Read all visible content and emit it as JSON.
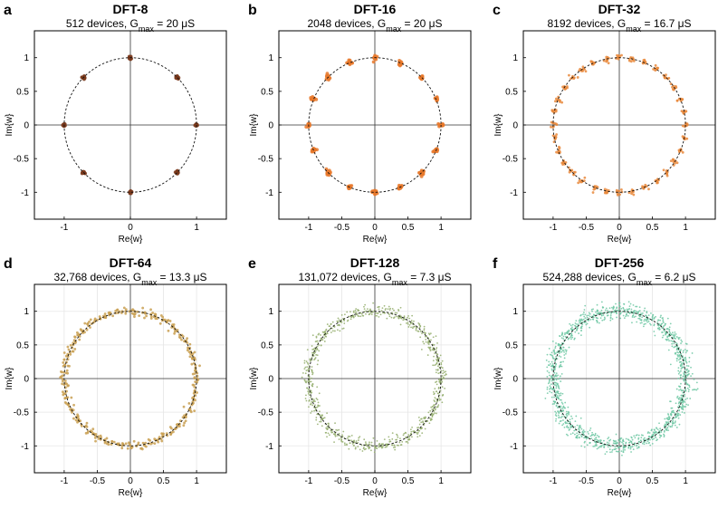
{
  "chart_data": [
    {
      "type": "scatter",
      "panel_letter": "a",
      "title": "DFT-8",
      "subtitle_prefix": "512 devices, G",
      "subtitle_sub": "max",
      "subtitle_suffix": " = 20 μS",
      "xlabel": "Re{w}",
      "ylabel": "Im{w}",
      "xlim": [
        -1.45,
        1.45
      ],
      "ylim": [
        -1.4,
        1.4
      ],
      "xticks": [
        "-1",
        "0",
        "1"
      ],
      "xtick_values": [
        -1,
        0,
        1
      ],
      "yticks": [
        "1",
        "0.5",
        "0",
        "-0.5",
        "-1"
      ],
      "ytick_values": [
        1,
        0.5,
        0,
        -0.5,
        -1
      ],
      "grid": false,
      "unit_circle": true,
      "n_roots": 8,
      "point_spread": 0.012,
      "points_per_cluster": 14,
      "point_color": "#7a3a1c"
    },
    {
      "type": "scatter",
      "panel_letter": "b",
      "title": "DFT-16",
      "subtitle_prefix": "2048 devices, G",
      "subtitle_sub": "max",
      "subtitle_suffix": " = 20 μS",
      "xlabel": "Re{w}",
      "ylabel": "Im{w}",
      "xlim": [
        -1.45,
        1.45
      ],
      "ylim": [
        -1.4,
        1.4
      ],
      "xticks": [
        "-1",
        "-0.5",
        "0",
        "0.5",
        "1"
      ],
      "xtick_values": [
        -1,
        -0.5,
        0,
        0.5,
        1
      ],
      "yticks": [
        "1",
        "0.5",
        "0",
        "-0.5",
        "-1"
      ],
      "ytick_values": [
        1,
        0.5,
        0,
        -0.5,
        -1
      ],
      "grid": false,
      "unit_circle": true,
      "n_roots": 16,
      "point_spread": 0.018,
      "points_per_cluster": 14,
      "point_color": "#e8782a"
    },
    {
      "type": "scatter",
      "panel_letter": "c",
      "title": "DFT-32",
      "subtitle_prefix": "8192 devices, G",
      "subtitle_sub": "max",
      "subtitle_suffix": " = 16.7 μS",
      "xlabel": "Re{w}",
      "ylabel": "Im{w}",
      "xlim": [
        -1.45,
        1.45
      ],
      "ylim": [
        -1.4,
        1.4
      ],
      "xticks": [
        "-1",
        "-0.5",
        "0",
        "0.5",
        "1"
      ],
      "xtick_values": [
        -1,
        -0.5,
        0,
        0.5,
        1
      ],
      "yticks": [
        "1",
        "0.5",
        "0",
        "-0.5",
        "-1"
      ],
      "ytick_values": [
        1,
        0.5,
        0,
        -0.5,
        -1
      ],
      "grid": false,
      "unit_circle": true,
      "n_roots": 32,
      "point_spread": 0.025,
      "points_per_cluster": 9,
      "point_color": "#e98a3d"
    },
    {
      "type": "scatter",
      "panel_letter": "d",
      "title": "DFT-64",
      "subtitle_prefix": "32,768 devices, G",
      "subtitle_sub": "max",
      "subtitle_suffix": " = 13.3 μS",
      "xlabel": "Re{w}",
      "ylabel": "Im{w}",
      "xlim": [
        -1.45,
        1.45
      ],
      "ylim": [
        -1.4,
        1.4
      ],
      "xticks": [
        "-1",
        "-0.5",
        "0",
        "0.5",
        "1"
      ],
      "xtick_values": [
        -1,
        -0.5,
        0,
        0.5,
        1
      ],
      "yticks": [
        "1",
        "0.5",
        "0",
        "-0.5",
        "-1"
      ],
      "ytick_values": [
        1,
        0.5,
        0,
        -0.5,
        -1
      ],
      "grid": true,
      "unit_circle": true,
      "n_roots": 64,
      "point_spread": 0.03,
      "points_per_cluster": 6,
      "point_color": "#c9a052"
    },
    {
      "type": "scatter",
      "panel_letter": "e",
      "title": "DFT-128",
      "subtitle_prefix": "131,072 devices, G",
      "subtitle_sub": "max",
      "subtitle_suffix": " = 7.3 μS",
      "xlabel": "Re{w}",
      "ylabel": "Im{w}",
      "xlim": [
        -1.45,
        1.45
      ],
      "ylim": [
        -1.4,
        1.4
      ],
      "xticks": [
        "-1",
        "-0.5",
        "0",
        "0.5",
        "1"
      ],
      "xtick_values": [
        -1,
        -0.5,
        0,
        0.5,
        1
      ],
      "yticks": [
        "1",
        "0.5",
        "0",
        "-0.5",
        "-1"
      ],
      "ytick_values": [
        1,
        0.5,
        0,
        -0.5,
        -1
      ],
      "grid": true,
      "unit_circle": true,
      "n_roots": 128,
      "point_spread": 0.045,
      "points_per_cluster": 6,
      "point_color": "#93ad6b"
    },
    {
      "type": "scatter",
      "panel_letter": "f",
      "title": "DFT-256",
      "subtitle_prefix": "524,288 devices, G",
      "subtitle_sub": "max",
      "subtitle_suffix": " = 6.2 μS",
      "xlabel": "Re{w}",
      "ylabel": "Im{w}",
      "xlim": [
        -1.45,
        1.45
      ],
      "ylim": [
        -1.4,
        1.4
      ],
      "xticks": [
        "-1",
        "-0.5",
        "0",
        "0.5",
        "1"
      ],
      "xtick_values": [
        -1,
        -0.5,
        0,
        0.5,
        1
      ],
      "yticks": [
        "1",
        "0.5",
        "0",
        "-0.5",
        "-1"
      ],
      "ytick_values": [
        1,
        0.5,
        0,
        -0.5,
        -1
      ],
      "grid": true,
      "unit_circle": true,
      "n_roots": 256,
      "point_spread": 0.06,
      "points_per_cluster": 5,
      "point_color": "#6cc7a2"
    }
  ]
}
